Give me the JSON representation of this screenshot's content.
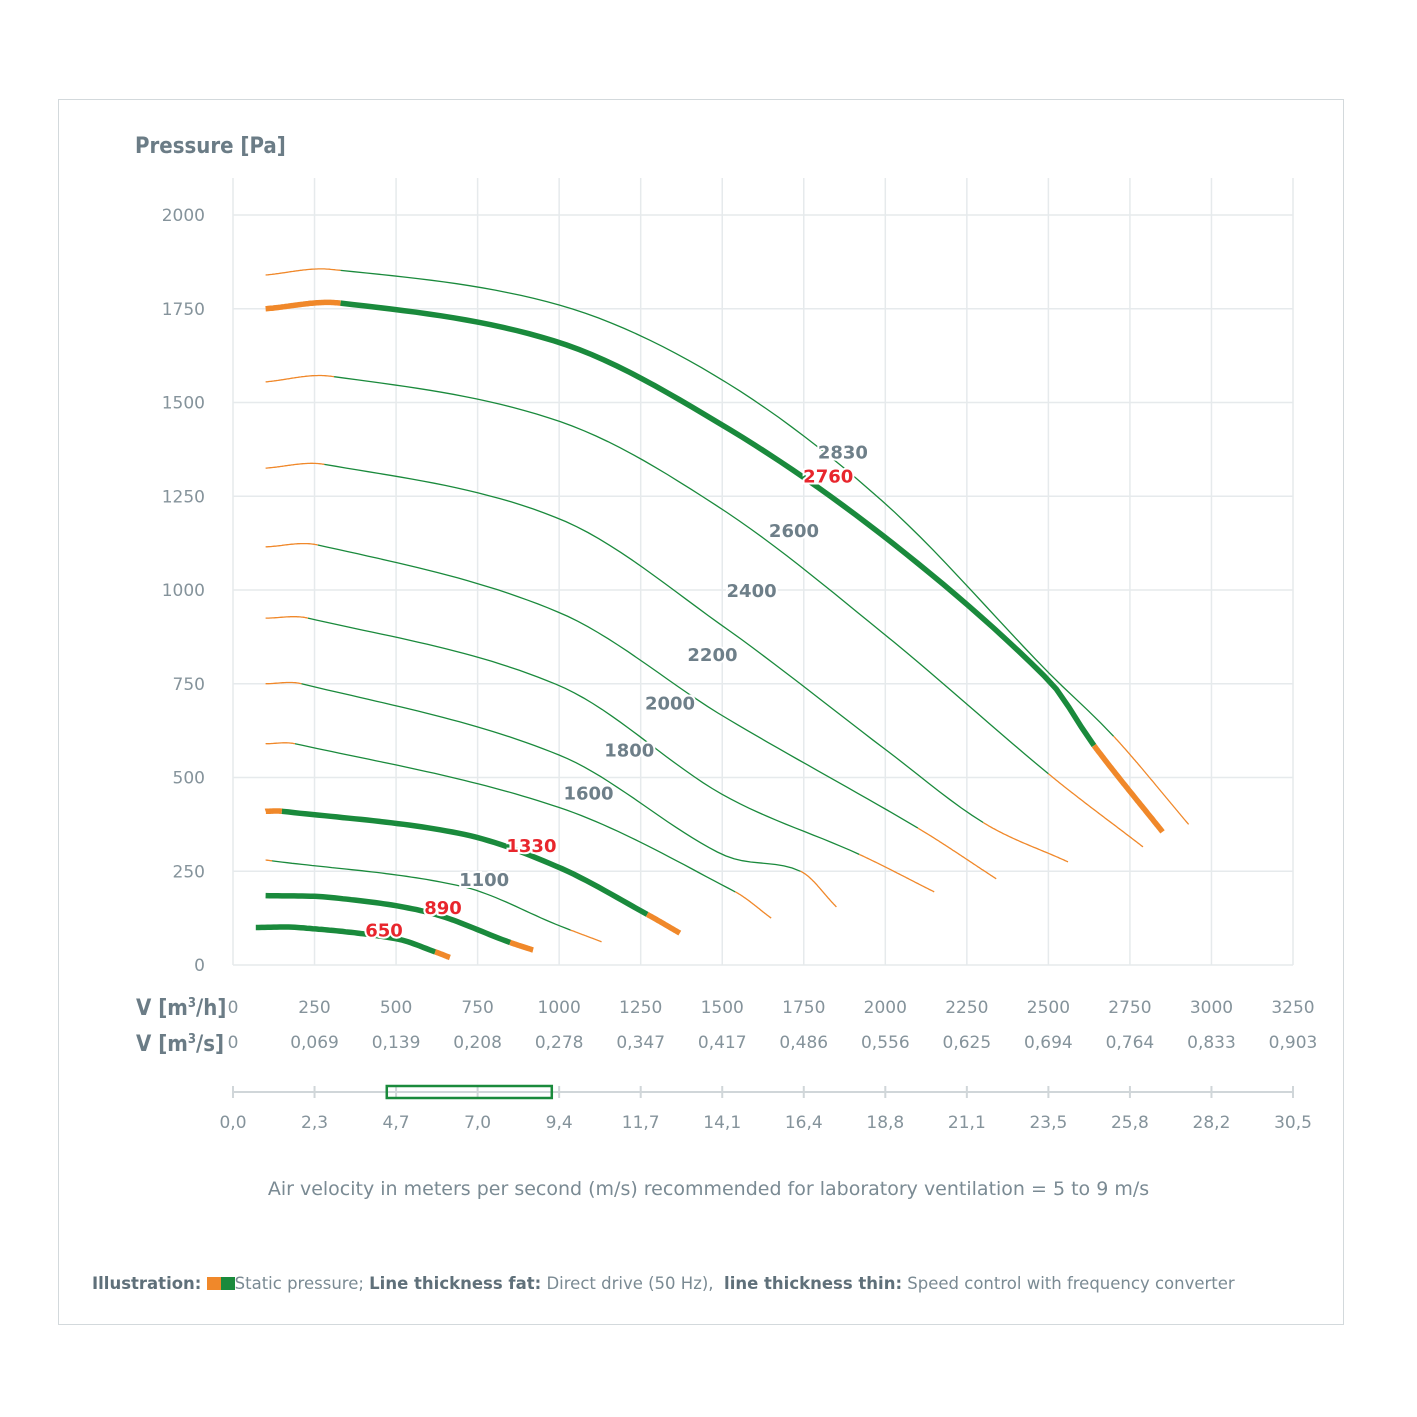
{
  "chart_data": {
    "type": "line",
    "ylabel": "Pressure [Pa]",
    "ylim": [
      0,
      2000
    ],
    "yticks": [
      "2000",
      "1750",
      "1500",
      "1250",
      "1000",
      "750",
      "500",
      "250",
      "0"
    ],
    "xlim": [
      0,
      3250
    ],
    "x_axes": [
      {
        "label_main": "V [m",
        "label_sup": "3",
        "label_end": "/h]",
        "ticks": [
          "0",
          "250",
          "500",
          "750",
          "1000",
          "1250",
          "1500",
          "1750",
          "2000",
          "2250",
          "2500",
          "2750",
          "3000",
          "3250"
        ]
      },
      {
        "label_main": "V [m",
        "label_sup": "3",
        "label_end": "/s]",
        "ticks": [
          "0",
          "0,069",
          "0,139",
          "0,208",
          "0,278",
          "0,347",
          "0,417",
          "0,486",
          "0,556",
          "0,625",
          "0,694",
          "0,764",
          "0,833",
          "0,903"
        ]
      },
      {
        "label_main": "",
        "ticks": [
          "0,0",
          "2,3",
          "4,7",
          "7,0",
          "9,4",
          "11,7",
          "14,1",
          "16,4",
          "18,8",
          "21,1",
          "23,5",
          "25,8",
          "28,2",
          "30,5"
        ]
      }
    ],
    "recommended_velocity_range": [
      5,
      9
    ],
    "colors": {
      "green": "#1a8a3c",
      "orange": "#f0882a",
      "grid": "#e6eaec",
      "label_gray": "#6e7f89",
      "label_red": "#e8262d"
    },
    "series": [
      {
        "name": "2830",
        "fat": false,
        "label_color": "gray",
        "points": [
          [
            100,
            1840
          ],
          [
            300,
            1855
          ],
          [
            1000,
            1760
          ],
          [
            1500,
            1560
          ],
          [
            2000,
            1230
          ],
          [
            2500,
            780
          ],
          [
            2700,
            610
          ],
          [
            2930,
            375
          ]
        ],
        "orange_to": 330,
        "orange_from": 2700,
        "label_at": [
          1870,
          1370
        ]
      },
      {
        "name": "2760",
        "fat": true,
        "label_color": "red",
        "points": [
          [
            100,
            1750
          ],
          [
            330,
            1765
          ],
          [
            1000,
            1660
          ],
          [
            1500,
            1440
          ],
          [
            2000,
            1140
          ],
          [
            2500,
            760
          ],
          [
            2640,
            585
          ],
          [
            2850,
            355
          ]
        ],
        "orange_to": 330,
        "orange_from": 2640,
        "label_at": [
          1825,
          1305
        ]
      },
      {
        "name": "2600",
        "fat": false,
        "label_color": "gray",
        "points": [
          [
            100,
            1555
          ],
          [
            300,
            1570
          ],
          [
            1000,
            1450
          ],
          [
            1500,
            1215
          ],
          [
            2000,
            880
          ],
          [
            2500,
            510
          ],
          [
            2790,
            315
          ]
        ],
        "orange_to": 310,
        "orange_from": 2500,
        "label_at": [
          1720,
          1160
        ]
      },
      {
        "name": "2400",
        "fat": false,
        "label_color": "gray",
        "points": [
          [
            100,
            1325
          ],
          [
            280,
            1335
          ],
          [
            1000,
            1190
          ],
          [
            1500,
            905
          ],
          [
            2000,
            575
          ],
          [
            2300,
            380
          ],
          [
            2560,
            275
          ]
        ],
        "orange_to": 280,
        "orange_from": 2300,
        "label_at": [
          1590,
          1000
        ]
      },
      {
        "name": "2200",
        "fat": false,
        "label_color": "gray",
        "points": [
          [
            100,
            1115
          ],
          [
            260,
            1120
          ],
          [
            1000,
            940
          ],
          [
            1500,
            665
          ],
          [
            2100,
            365
          ],
          [
            2340,
            230
          ]
        ],
        "orange_to": 260,
        "orange_from": 2100,
        "label_at": [
          1470,
          830
        ]
      },
      {
        "name": "2000",
        "fat": false,
        "label_color": "gray",
        "points": [
          [
            100,
            925
          ],
          [
            230,
            925
          ],
          [
            1000,
            745
          ],
          [
            1500,
            455
          ],
          [
            1920,
            295
          ],
          [
            2150,
            195
          ]
        ],
        "orange_to": 230,
        "orange_from": 1920,
        "label_at": [
          1340,
          700
        ]
      },
      {
        "name": "1800",
        "fat": false,
        "label_color": "gray",
        "points": [
          [
            100,
            750
          ],
          [
            210,
            750
          ],
          [
            1000,
            560
          ],
          [
            1500,
            295
          ],
          [
            1740,
            250
          ],
          [
            1850,
            155
          ]
        ],
        "orange_to": 210,
        "orange_from": 1740,
        "label_at": [
          1215,
          575
        ]
      },
      {
        "name": "1600",
        "fat": false,
        "label_color": "gray",
        "points": [
          [
            100,
            590
          ],
          [
            190,
            590
          ],
          [
            1000,
            420
          ],
          [
            1540,
            195
          ],
          [
            1650,
            125
          ]
        ],
        "orange_to": 190,
        "orange_from": 1540,
        "label_at": [
          1090,
          460
        ]
      },
      {
        "name": "1330",
        "fat": true,
        "label_color": "red",
        "points": [
          [
            100,
            410
          ],
          [
            150,
            410
          ],
          [
            700,
            350
          ],
          [
            1000,
            260
          ],
          [
            1270,
            135
          ],
          [
            1370,
            85
          ]
        ],
        "orange_to": 150,
        "orange_from": 1270,
        "label_at": [
          915,
          320
        ]
      },
      {
        "name": "1100",
        "fat": false,
        "label_color": "gray",
        "points": [
          [
            100,
            280
          ],
          [
            700,
            210
          ],
          [
            1000,
            105
          ],
          [
            1130,
            62
          ]
        ],
        "orange_to": 120,
        "orange_from": 1035,
        "label_at": [
          770,
          230
        ]
      },
      {
        "name": "890",
        "fat": true,
        "label_color": "red",
        "points": [
          [
            100,
            185
          ],
          [
            300,
            180
          ],
          [
            600,
            140
          ],
          [
            850,
            60
          ],
          [
            920,
            40
          ]
        ],
        "orange_to": 100,
        "orange_from": 850,
        "label_at": [
          644,
          155
        ]
      },
      {
        "name": "650",
        "fat": true,
        "label_color": "red",
        "points": [
          [
            70,
            100
          ],
          [
            200,
            100
          ],
          [
            500,
            70
          ],
          [
            620,
            35
          ],
          [
            665,
            20
          ]
        ],
        "orange_to": 70,
        "orange_from": 620,
        "label_at": [
          463,
          95
        ]
      }
    ]
  },
  "caption": "Air velocity in meters per second (m/s) recommended for laboratory ventilation = 5 to 9 m/s",
  "legend": {
    "illustration_label": "Illustration:",
    "static_pressure": "Static pressure;",
    "fat_label": "Line thickness fat:",
    "fat_desc": "Direct drive (50 Hz),",
    "thin_label": "line thickness thin:",
    "thin_desc": "Speed control with frequency converter"
  }
}
